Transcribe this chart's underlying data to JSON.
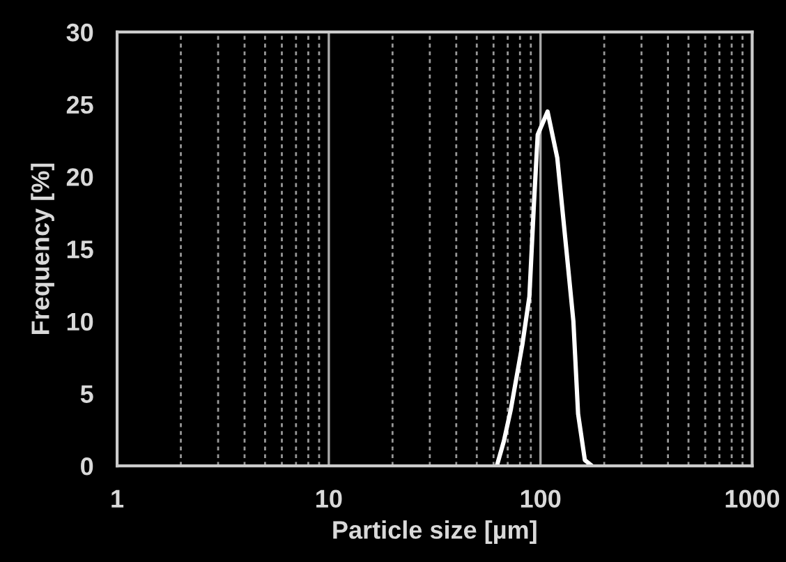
{
  "chart_data": {
    "type": "line",
    "xlabel": "Particle size [µm]",
    "ylabel": "Frequency [%]",
    "log": "x",
    "xlim": [
      1,
      1000
    ],
    "xticks": [
      1,
      10,
      100,
      1000
    ],
    "ylim": [
      0,
      30
    ],
    "yticks": [
      0,
      5,
      10,
      15,
      20,
      25,
      30
    ],
    "grid": "x",
    "marker": "none",
    "line_style": "solid",
    "series": [
      {
        "color": "#ffffff",
        "x": [
          62.2,
          67.1,
          72.4,
          82.1,
          88.6,
          93.1,
          97,
          108,
          120,
          132.6,
          143,
          150.5,
          162,
          175
        ],
        "values": [
          0,
          1.7,
          3.9,
          8.4,
          11.7,
          18.1,
          22.9,
          24.5,
          21.3,
          14.9,
          10.0,
          3.6,
          0.4,
          0
        ]
      }
    ]
  }
}
